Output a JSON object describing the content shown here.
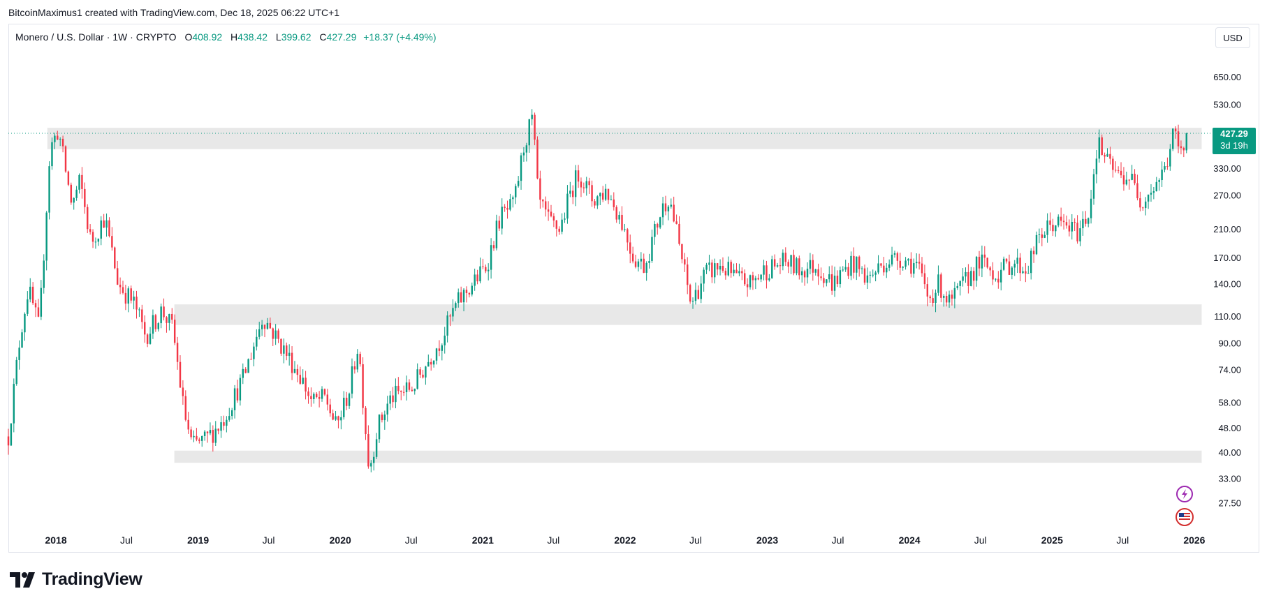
{
  "header": {
    "attribution": "BitcoinMaximus1 created with TradingView.com, Dec 18, 2025 06:22 UTC+1"
  },
  "legend": {
    "symbol": "Monero / U.S. Dollar · 1W · CRYPTO",
    "open_label": "O",
    "open_value": "408.92",
    "high_label": "H",
    "high_value": "438.42",
    "low_label": "L",
    "low_value": "399.62",
    "close_label": "C",
    "close_value": "427.29",
    "change": "+18.37 (+4.49%)"
  },
  "currency_button": "USD",
  "price_tag": {
    "price": "427.29",
    "countdown": "3d 19h"
  },
  "brand": {
    "name": "TradingView"
  },
  "colors": {
    "up": "#089981",
    "down": "#f23645",
    "zone": "#e0e0e0",
    "tag": "#089981",
    "text": "#131722"
  },
  "icons": [
    "lightning-icon",
    "us-flag-icon"
  ],
  "chart_data": {
    "type": "candlestick",
    "title": "Monero / U.S. Dollar",
    "timeframe": "1W",
    "y_scale": "log",
    "ylim": [
      23,
      800
    ],
    "xlim": [
      "2017-09-01",
      "2026-02-15"
    ],
    "y_ticks": [
      "650.00",
      "530.00",
      "330.00",
      "270.00",
      "210.00",
      "170.00",
      "140.00",
      "110.00",
      "90.00",
      "74.00",
      "58.00",
      "48.00",
      "40.00",
      "33.00",
      "27.50"
    ],
    "x_ticks": [
      {
        "label": "2018",
        "date": "2018-01-01",
        "bold": true
      },
      {
        "label": "Jul",
        "date": "2018-07-01",
        "bold": false
      },
      {
        "label": "2019",
        "date": "2019-01-01",
        "bold": true
      },
      {
        "label": "Jul",
        "date": "2019-07-01",
        "bold": false
      },
      {
        "label": "2020",
        "date": "2020-01-01",
        "bold": true
      },
      {
        "label": "Jul",
        "date": "2020-07-01",
        "bold": false
      },
      {
        "label": "2021",
        "date": "2021-01-01",
        "bold": true
      },
      {
        "label": "Jul",
        "date": "2021-07-01",
        "bold": false
      },
      {
        "label": "2022",
        "date": "2022-01-01",
        "bold": true
      },
      {
        "label": "Jul",
        "date": "2022-07-01",
        "bold": false
      },
      {
        "label": "2023",
        "date": "2023-01-01",
        "bold": true
      },
      {
        "label": "Jul",
        "date": "2023-07-01",
        "bold": false
      },
      {
        "label": "2024",
        "date": "2024-01-01",
        "bold": true
      },
      {
        "label": "Jul",
        "date": "2024-07-01",
        "bold": false
      },
      {
        "label": "2025",
        "date": "2025-01-01",
        "bold": true
      },
      {
        "label": "Jul",
        "date": "2025-07-01",
        "bold": false
      },
      {
        "label": "2026",
        "date": "2026-01-01",
        "bold": true
      }
    ],
    "zones": [
      {
        "name": "resistance-zone",
        "start": "2017-12-10",
        "end": "2026-01-20",
        "low": 380,
        "high": 445
      },
      {
        "name": "mid-support-zone",
        "start": "2018-11-01",
        "end": "2026-01-20",
        "low": 103,
        "high": 120
      },
      {
        "name": "low-support-zone",
        "start": "2018-11-01",
        "end": "2026-01-20",
        "low": 37,
        "high": 40.5
      }
    ],
    "last_price": 427.29,
    "anchors": [
      [
        "2017-09-01",
        45
      ],
      [
        "2017-10-01",
        95
      ],
      [
        "2017-10-22",
        135
      ],
      [
        "2017-11-19",
        100
      ],
      [
        "2017-12-17",
        380
      ],
      [
        "2018-01-07",
        440
      ],
      [
        "2018-02-11",
        250
      ],
      [
        "2018-03-04",
        300
      ],
      [
        "2018-04-01",
        190
      ],
      [
        "2018-05-06",
        230
      ],
      [
        "2018-06-10",
        140
      ],
      [
        "2018-07-22",
        120
      ],
      [
        "2018-08-19",
        95
      ],
      [
        "2018-09-30",
        115
      ],
      [
        "2018-10-28",
        100
      ],
      [
        "2018-11-25",
        55
      ],
      [
        "2018-12-16",
        42
      ],
      [
        "2019-01-20",
        44
      ],
      [
        "2019-03-03",
        50
      ],
      [
        "2019-04-28",
        70
      ],
      [
        "2019-06-16",
        110
      ],
      [
        "2019-07-07",
        100
      ],
      [
        "2019-08-11",
        85
      ],
      [
        "2019-09-22",
        70
      ],
      [
        "2019-10-20",
        58
      ],
      [
        "2019-11-24",
        60
      ],
      [
        "2019-12-22",
        48
      ],
      [
        "2020-01-26",
        65
      ],
      [
        "2020-02-16",
        90
      ],
      [
        "2020-03-15",
        35
      ],
      [
        "2020-04-05",
        48
      ],
      [
        "2020-05-10",
        60
      ],
      [
        "2020-07-05",
        65
      ],
      [
        "2020-08-16",
        80
      ],
      [
        "2020-09-20",
        95
      ],
      [
        "2020-10-25",
        120
      ],
      [
        "2020-12-06",
        140
      ],
      [
        "2021-01-10",
        160
      ],
      [
        "2021-02-14",
        230
      ],
      [
        "2021-03-21",
        250
      ],
      [
        "2021-04-18",
        400
      ],
      [
        "2021-05-09",
        480
      ],
      [
        "2021-05-23",
        260
      ],
      [
        "2021-06-20",
        220
      ],
      [
        "2021-07-18",
        210
      ],
      [
        "2021-08-15",
        280
      ],
      [
        "2021-09-05",
        320
      ],
      [
        "2021-10-10",
        260
      ],
      [
        "2021-11-14",
        280
      ],
      [
        "2021-12-19",
        230
      ],
      [
        "2022-01-23",
        170
      ],
      [
        "2022-02-20",
        160
      ],
      [
        "2022-04-03",
        240
      ],
      [
        "2022-04-24",
        270
      ],
      [
        "2022-05-22",
        180
      ],
      [
        "2022-06-19",
        120
      ],
      [
        "2022-07-24",
        150
      ],
      [
        "2022-09-04",
        160
      ],
      [
        "2022-10-16",
        145
      ],
      [
        "2022-11-20",
        140
      ],
      [
        "2022-12-25",
        155
      ],
      [
        "2023-02-19",
        165
      ],
      [
        "2023-03-26",
        155
      ],
      [
        "2023-05-07",
        160
      ],
      [
        "2023-06-18",
        140
      ],
      [
        "2023-08-06",
        165
      ],
      [
        "2023-09-17",
        145
      ],
      [
        "2023-10-29",
        165
      ],
      [
        "2023-12-10",
        170
      ],
      [
        "2024-01-21",
        160
      ],
      [
        "2024-02-18",
        125
      ],
      [
        "2024-03-17",
        140
      ],
      [
        "2024-04-14",
        120
      ],
      [
        "2024-05-19",
        140
      ],
      [
        "2024-06-30",
        165
      ],
      [
        "2024-08-11",
        150
      ],
      [
        "2024-09-22",
        165
      ],
      [
        "2024-10-27",
        155
      ],
      [
        "2024-12-01",
        200
      ],
      [
        "2025-01-05",
        220
      ],
      [
        "2025-02-02",
        215
      ],
      [
        "2025-03-09",
        205
      ],
      [
        "2025-04-06",
        240
      ],
      [
        "2025-04-27",
        400
      ],
      [
        "2025-05-25",
        340
      ],
      [
        "2025-06-22",
        310
      ],
      [
        "2025-07-20",
        310
      ],
      [
        "2025-08-17",
        260
      ],
      [
        "2025-09-21",
        290
      ],
      [
        "2025-10-19",
        330
      ],
      [
        "2025-11-09",
        430
      ],
      [
        "2025-11-30",
        360
      ],
      [
        "2025-12-14",
        427.29
      ]
    ]
  }
}
